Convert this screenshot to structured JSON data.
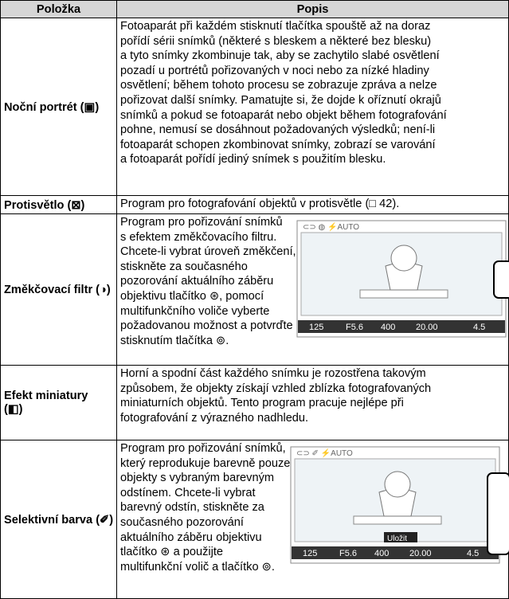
{
  "table": {
    "headers": [
      "Položka",
      "Popis"
    ],
    "rows": [
      {
        "item": [
          "Noční portrét (▣)"
        ],
        "desc": [
          "Fotoaparát při každém stisknutí tlačítka spouště až na doraz",
          "pořídí sérii snímků (některé s bleskem a některé bez blesku)",
          "a tyto snímky zkombinuje tak, aby se zachytilo slabé osvětlení",
          "pozadí u portrétů pořizovaných v noci nebo za nízké hladiny",
          "osvětlení; během tohoto procesu se zobrazuje zpráva a nelze",
          "pořizovat další snímky. Pamatujte si, že dojde k oříznutí okrajů",
          "snímků a pokud se fotoaparát nebo objekt během fotografování",
          "pohne, nemusí se dosáhnout požadovaných výsledků; není-li",
          "fotoaparát schopen zkombinovat snímky, zobrazí se varování",
          "a fotoaparát pořídí jediný snímek s použitím blesku."
        ]
      },
      {
        "item": [
          "Protisvětlo (⊠)"
        ],
        "desc": [
          "Program pro fotografování objektů v protisvětle (□ 42)."
        ]
      },
      {
        "item": [
          "Změkčovací filtr (◑)"
        ],
        "desc": [
          "Program pro pořizování snímků",
          "s efektem změkčovacího filtru.",
          "Chcete-li vybrat úroveň změkčení,",
          "stiskněte za současného",
          "pozorování aktuálního záběru",
          "objektivu tlačítko ⊛, pomocí",
          "multifunkčního voliče vyberte",
          "požadovanou možnost a potvrďte",
          "stisknutím tlačítka ⊚."
        ],
        "screen": {
          "top": "⊂⊃ ◍ ⚡AUTO",
          "readout": [
            "125",
            "F5.6",
            "400",
            "20.00",
            "4.5"
          ]
        }
      },
      {
        "item": [
          "Efekt miniatury",
          "(◧)"
        ],
        "desc": [
          "Horní a spodní část každého snímku je rozostřena takovým",
          "způsobem, že objekty získají vzhled zblízka fotografovaných",
          "miniaturních objektů. Tento program pracuje nejlépe při",
          "fotografování z výrazného nadhledu."
        ]
      },
      {
        "item": [
          "Selektivní barva (✐)"
        ],
        "desc": [
          "Program pro pořizování snímků,",
          "který reprodukuje barevně pouze",
          "objekty s vybraným barevným",
          "odstínem. Chcete-li vybrat",
          "barevný odstín, stiskněte za",
          "současného pozorování",
          "aktuálního záběru objektivu",
          "tlačítko ⊛ a použijte",
          "multifunkční volič a tlačítko ⊚."
        ],
        "screen": {
          "top": "⊂⊃ ✐ ⚡AUTO",
          "save": "Uložit",
          "readout": [
            "125",
            "F5.6",
            "400",
            "20.00",
            "4.5"
          ]
        }
      }
    ]
  }
}
